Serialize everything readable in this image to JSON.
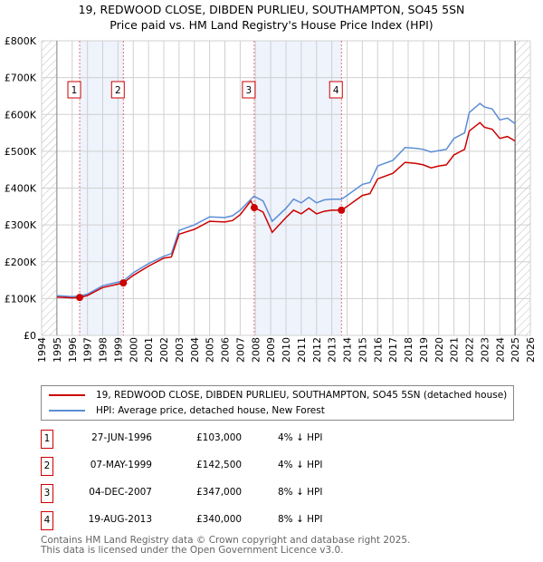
{
  "chart_data": {
    "type": "line",
    "title": "19, REDWOOD CLOSE, DIBDEN PURLIEU, SOUTHAMPTON, SO45 5SN",
    "subtitle": "Price paid vs. HM Land Registry's House Price Index (HPI)",
    "xlim": [
      1994,
      2026
    ],
    "ylim": [
      0,
      800000
    ],
    "x_ticks": [
      "1994",
      "1995",
      "1996",
      "1997",
      "1998",
      "1999",
      "2000",
      "2001",
      "2002",
      "2003",
      "2004",
      "2005",
      "2006",
      "2007",
      "2008",
      "2009",
      "2010",
      "2011",
      "2012",
      "2013",
      "2014",
      "2015",
      "2016",
      "2017",
      "2018",
      "2019",
      "2020",
      "2021",
      "2022",
      "2023",
      "2024",
      "2025",
      "2026"
    ],
    "y_ticks": [
      {
        "v": 0,
        "label": "£0"
      },
      {
        "v": 100000,
        "label": "£100K"
      },
      {
        "v": 200000,
        "label": "£200K"
      },
      {
        "v": 300000,
        "label": "£300K"
      },
      {
        "v": 400000,
        "label": "£400K"
      },
      {
        "v": 500000,
        "label": "£500K"
      },
      {
        "v": 600000,
        "label": "£600K"
      },
      {
        "v": 700000,
        "label": "£700K"
      },
      {
        "v": 800000,
        "label": "£800K"
      }
    ],
    "grid": true,
    "hatched_ranges": [
      [
        1994,
        1995
      ],
      [
        2025,
        2026
      ]
    ],
    "shaded_ranges": [
      [
        1996.49,
        1999.35
      ],
      [
        2007.92,
        2013.63
      ]
    ],
    "series": [
      {
        "name": "19, REDWOOD CLOSE, DIBDEN PURLIEU, SOUTHAMPTON, SO45 5SN (detached house)",
        "color": "#cc0000",
        "x": [
          1995,
          1996,
          1996.49,
          1997,
          1998,
          1999.35,
          2000,
          2001,
          2002,
          2002.5,
          2003,
          2004,
          2005,
          2006,
          2006.5,
          2007,
          2007.7,
          2007.92,
          2008.5,
          2009.1,
          2010,
          2010.5,
          2011,
          2011.5,
          2012,
          2012.5,
          2013,
          2013.63,
          2014,
          2015,
          2015.5,
          2016,
          2017,
          2017.8,
          2018.5,
          2019,
          2019.5,
          2020,
          2020.5,
          2021,
          2021.7,
          2022,
          2022.7,
          2023,
          2023.5,
          2024,
          2024.5,
          2025
        ],
        "y": [
          104000,
          102000,
          103000,
          108000,
          130000,
          142500,
          163000,
          188000,
          210000,
          213000,
          275000,
          288000,
          310000,
          308000,
          312000,
          328000,
          365000,
          347000,
          335000,
          280000,
          320000,
          340000,
          330000,
          345000,
          330000,
          337000,
          340000,
          340000,
          350000,
          380000,
          385000,
          425000,
          440000,
          470000,
          467000,
          463000,
          455000,
          460000,
          463000,
          490000,
          505000,
          555000,
          578000,
          565000,
          560000,
          535000,
          540000,
          528000
        ]
      },
      {
        "name": "HPI: Average price, detached house, New Forest",
        "color": "#5b8ed6",
        "x": [
          1995,
          1996,
          1996.49,
          1997,
          1998,
          1999.35,
          2000,
          2001,
          2002,
          2002.5,
          2003,
          2004,
          2005,
          2006,
          2006.5,
          2007,
          2007.9,
          2008.5,
          2009.1,
          2010,
          2010.5,
          2011,
          2011.5,
          2012,
          2012.5,
          2013,
          2013.63,
          2014,
          2015,
          2015.5,
          2016,
          2017,
          2017.8,
          2018.5,
          2019,
          2019.5,
          2020,
          2020.5,
          2021,
          2021.7,
          2022,
          2022.7,
          2023,
          2023.5,
          2024,
          2024.5,
          2025
        ],
        "y": [
          108000,
          105000,
          107000,
          112000,
          135000,
          148000,
          170000,
          195000,
          215000,
          222000,
          285000,
          300000,
          322000,
          320000,
          325000,
          340000,
          378000,
          365000,
          310000,
          345000,
          370000,
          360000,
          375000,
          360000,
          368000,
          370000,
          370000,
          380000,
          410000,
          415000,
          460000,
          475000,
          510000,
          508000,
          505000,
          498000,
          502000,
          505000,
          535000,
          550000,
          605000,
          630000,
          620000,
          615000,
          585000,
          590000,
          575000
        ]
      }
    ],
    "sales": [
      {
        "id": "1",
        "x": 1996.49,
        "y": 103000
      },
      {
        "id": "2",
        "x": 1999.35,
        "y": 142500
      },
      {
        "id": "3",
        "x": 2007.92,
        "y": 347000
      },
      {
        "id": "4",
        "x": 2013.63,
        "y": 340000
      }
    ]
  },
  "legend": {
    "property": "19, REDWOOD CLOSE, DIBDEN PURLIEU, SOUTHAMPTON, SO45 5SN (detached house)",
    "hpi": "HPI: Average price, detached house, New Forest"
  },
  "transactions": [
    {
      "num": "1",
      "date": "27-JUN-1996",
      "price": "£103,000",
      "hpi": "4% ↓ HPI"
    },
    {
      "num": "2",
      "date": "07-MAY-1999",
      "price": "£142,500",
      "hpi": "4% ↓ HPI"
    },
    {
      "num": "3",
      "date": "04-DEC-2007",
      "price": "£347,000",
      "hpi": "8% ↓ HPI"
    },
    {
      "num": "4",
      "date": "19-AUG-2013",
      "price": "£340,000",
      "hpi": "8% ↓ HPI"
    }
  ],
  "footer": {
    "line1": "Contains HM Land Registry data © Crown copyright and database right 2025.",
    "line2": "This data is licensed under the Open Government Licence v3.0."
  }
}
